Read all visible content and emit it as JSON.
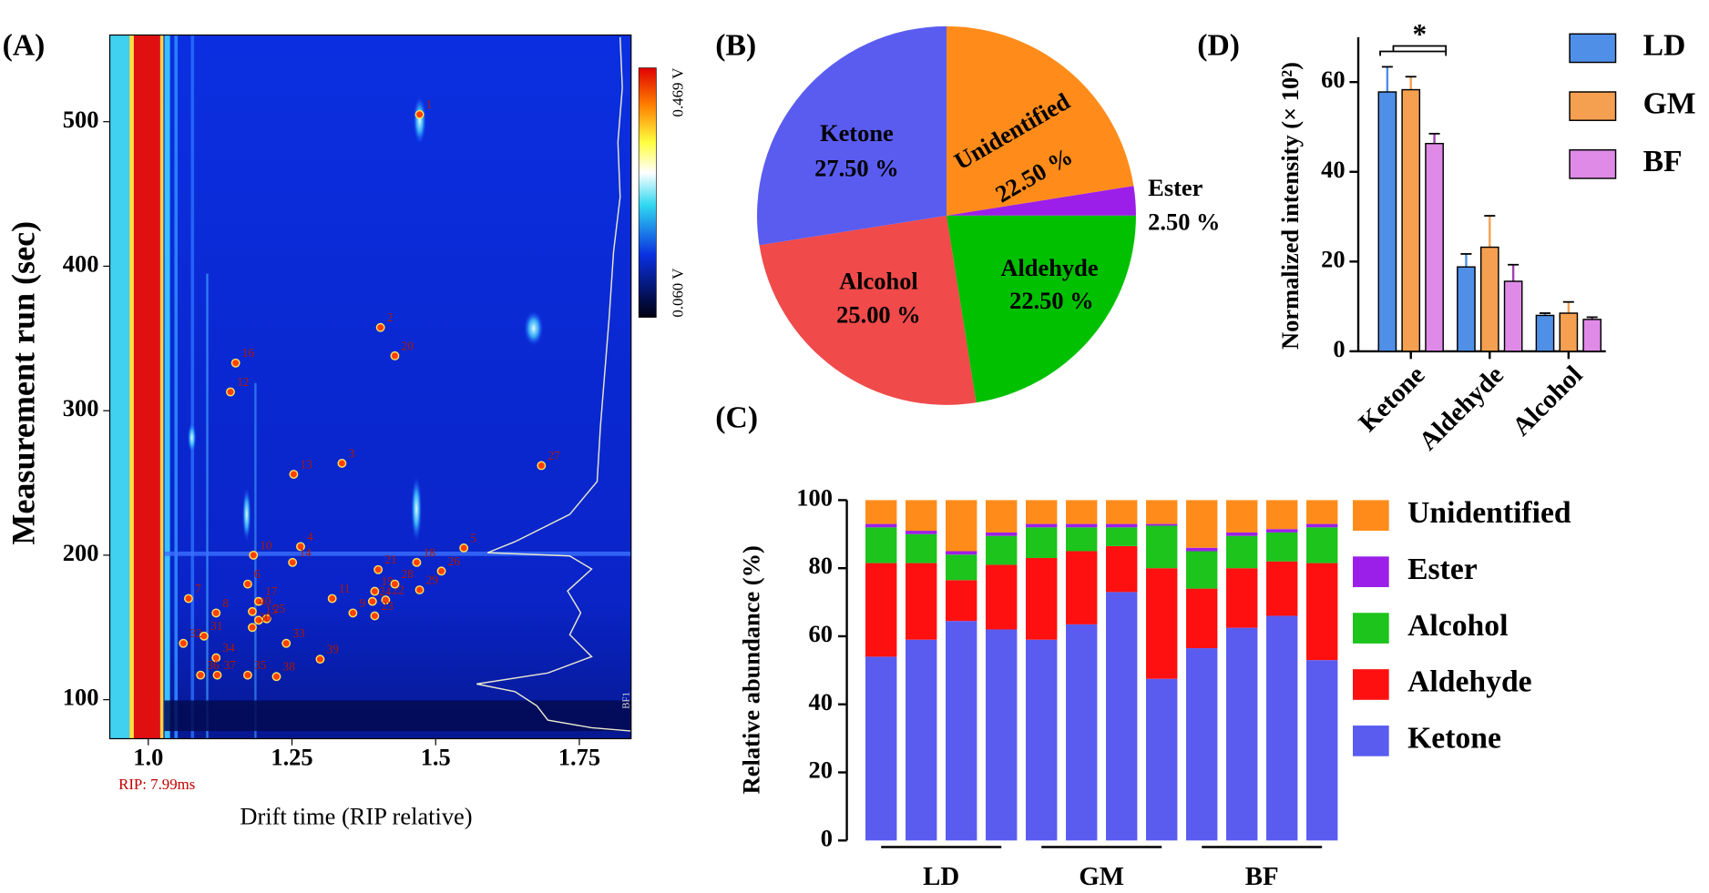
{
  "chart_data": [
    {
      "type": "gc-ims",
      "panel_label": "(A)",
      "xlabel": "Drift time (RIP relative)",
      "ylabel": "Measurement run (sec)",
      "xlim": [
        0.933,
        1.84
      ],
      "ylim": [
        73,
        560
      ],
      "xticks": [
        {
          "value": 1.0,
          "label": "1.0"
        },
        1.25,
        1.5,
        1.75
      ],
      "yticks": [
        100,
        200,
        300,
        400,
        500
      ],
      "rip_label": "RIP: 7.99ms",
      "colorbar": {
        "max_label": "0.469 V",
        "min_label": "0.060 V"
      },
      "sample_label": "BF1",
      "peaks": {
        "labels": [
          "1",
          "2",
          "3",
          "4",
          "5",
          "6",
          "7",
          "8",
          "9",
          "10",
          "11",
          "12",
          "13",
          "14",
          "15",
          "16",
          "17",
          "18",
          "19",
          "20",
          "21",
          "22",
          "23",
          "24",
          "25",
          "26",
          "27",
          "28",
          "29",
          "30",
          "31",
          "32",
          "33",
          "34",
          "35",
          "36",
          "37",
          "38",
          "39",
          "40"
        ],
        "x": [
          1.472,
          1.404,
          1.337,
          1.265,
          1.549,
          1.173,
          1.07,
          1.118,
          1.356,
          1.183,
          1.32,
          1.143,
          1.253,
          1.251,
          1.192,
          1.152,
          1.192,
          1.467,
          1.394,
          1.429,
          1.4,
          1.413,
          1.394,
          1.39,
          1.206,
          1.51,
          1.684,
          1.429,
          1.472,
          1.181,
          1.097,
          1.061,
          1.24,
          1.118,
          1.173,
          1.091,
          1.12,
          1.223,
          1.299,
          1.181
        ],
        "y": [
          505,
          357.6,
          263.6,
          206,
          205,
          180,
          170,
          160,
          160,
          200,
          170,
          313,
          256,
          195,
          155,
          333,
          168,
          195,
          175,
          338,
          190,
          169,
          158,
          168,
          156,
          189,
          262,
          180,
          176,
          150,
          144,
          139,
          139,
          129,
          117,
          117,
          117,
          116,
          128,
          161
        ]
      }
    },
    {
      "type": "pie",
      "panel_label": "(B)",
      "labels": [
        "Unidentified",
        "Ester",
        "Aldehyde",
        "Alcohol",
        "Ketone"
      ],
      "values": [
        22.5,
        2.5,
        22.5,
        25,
        27.5
      ],
      "value_labels": [
        "22.50 %",
        "2.50 %",
        "22.50 %",
        "25.00 %",
        "27.50 %"
      ],
      "colors": [
        "#ff8c1a",
        "#9b1fe8",
        "#00c000",
        "#f04a4a",
        "#5a5cf0"
      ]
    },
    {
      "type": "stacked-bar",
      "panel_label": "(C)",
      "ylabel": "Relative abundance (%)",
      "categories": [
        null,
        null,
        null,
        null,
        null,
        null,
        null,
        null,
        null,
        null,
        null,
        null
      ],
      "groups": [
        "LD",
        "GM",
        "BF"
      ],
      "ylim": [
        0,
        100
      ],
      "yticks": [
        0,
        20,
        40,
        60,
        80,
        100
      ],
      "series": [
        {
          "name": "Ketone",
          "color": "#5a5cf0",
          "values": [
            54,
            59,
            64.5,
            62,
            59,
            63.5,
            73,
            47.5,
            56.5,
            62.5,
            66,
            53
          ]
        },
        {
          "name": "Aldehyde",
          "color": "#ff1010",
          "values": [
            27.5,
            22.5,
            12,
            19,
            24,
            21.5,
            13.5,
            32.5,
            17.5,
            17.5,
            16,
            28.5
          ]
        },
        {
          "name": "Alcohol",
          "color": "#1cc41c",
          "values": [
            10.5,
            8.5,
            7.5,
            8.5,
            9,
            7,
            5.5,
            12.5,
            11,
            9.5,
            8.5,
            10.5
          ]
        },
        {
          "name": "Ester",
          "color": "#9b1fe8",
          "values": [
            1,
            1,
            1,
            1,
            1,
            1,
            1,
            0.5,
            1,
            1,
            1,
            1
          ]
        },
        {
          "name": "Unidentified",
          "color": "#ff8c1a",
          "values": [
            7,
            9,
            15,
            9.5,
            7,
            7,
            7,
            7,
            14,
            9.5,
            8.5,
            7
          ]
        }
      ]
    },
    {
      "type": "grouped-bar",
      "panel_label": "(D)",
      "ylabel": "Normalized intensity (× 10²)",
      "categories": [
        "Ketone",
        "Aldehyde",
        "Alcohol"
      ],
      "ylim": [
        0,
        70
      ],
      "yticks": [
        0,
        20,
        40,
        60
      ],
      "annotation": "*",
      "series": [
        {
          "name": "LD",
          "color": "#4f8fe8",
          "values": [
            57.8,
            18.8,
            8.0
          ],
          "errors": [
            5.6,
            2.9,
            0.5
          ]
        },
        {
          "name": "GM",
          "color": "#f5a050",
          "values": [
            58.3,
            23.2,
            8.5
          ],
          "errors": [
            2.9,
            7.0,
            2.5
          ]
        },
        {
          "name": "BF",
          "color": "#e08ae8",
          "values": [
            46.3,
            15.6,
            7.1
          ],
          "errors": [
            2.2,
            3.7,
            0.5
          ]
        }
      ]
    }
  ]
}
